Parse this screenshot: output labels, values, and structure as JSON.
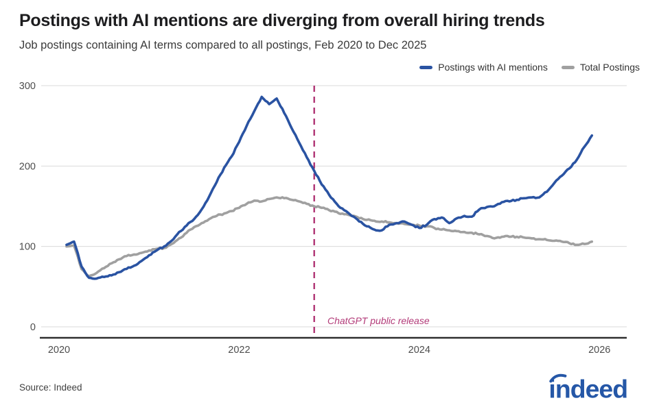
{
  "page": {
    "title": "Postings with AI mentions are diverging from overall hiring trends",
    "subtitle": "Job postings containing AI terms compared to all postings, Feb 2020 to Dec 2025",
    "source": "Source: Indeed",
    "logo_text": "indeed"
  },
  "colors": {
    "ai_line": "#2a53a2",
    "total_line": "#a0a0a0",
    "annotation": "#b23a78",
    "grid": "#d9d9d9",
    "axis": "#2e2e2e",
    "tick_text": "#4d4d4d",
    "brand_blue": "#2557a7"
  },
  "legend": [
    {
      "label": "Postings with AI mentions",
      "color": "#2a53a2"
    },
    {
      "label": "Total Postings",
      "color": "#a0a0a0"
    }
  ],
  "chart_data": {
    "type": "line",
    "title": "Postings with AI mentions are diverging from overall hiring trends",
    "subtitle": "Job postings containing AI terms compared to all postings, Feb 2020 to Dec 2025",
    "x": [
      "2020-02",
      "2020-03",
      "2020-04",
      "2020-05",
      "2020-06",
      "2020-07",
      "2020-08",
      "2020-09",
      "2020-10",
      "2020-11",
      "2020-12",
      "2021-01",
      "2021-02",
      "2021-03",
      "2021-04",
      "2021-05",
      "2021-06",
      "2021-07",
      "2021-08",
      "2021-09",
      "2021-10",
      "2021-11",
      "2021-12",
      "2022-01",
      "2022-02",
      "2022-03",
      "2022-04",
      "2022-05",
      "2022-06",
      "2022-07",
      "2022-08",
      "2022-09",
      "2022-10",
      "2022-11",
      "2022-12",
      "2023-01",
      "2023-02",
      "2023-03",
      "2023-04",
      "2023-05",
      "2023-06",
      "2023-07",
      "2023-08",
      "2023-09",
      "2023-10",
      "2023-11",
      "2023-12",
      "2024-01",
      "2024-02",
      "2024-03",
      "2024-04",
      "2024-05",
      "2024-06",
      "2024-07",
      "2024-08",
      "2024-09",
      "2024-10",
      "2024-11",
      "2024-12",
      "2025-01",
      "2025-02",
      "2025-03",
      "2025-04",
      "2025-05",
      "2025-06",
      "2025-07",
      "2025-08",
      "2025-09",
      "2025-10",
      "2025-11",
      "2025-12"
    ],
    "series": [
      {
        "name": "Postings with AI mentions",
        "color": "#2a53a2",
        "values": [
          102,
          106,
          75,
          61,
          60,
          62,
          64,
          68,
          72,
          76,
          82,
          89,
          95,
          100,
          107,
          118,
          126,
          134,
          146,
          162,
          180,
          198,
          212,
          230,
          250,
          268,
          286,
          277,
          284,
          266,
          247,
          229,
          211,
          194,
          177,
          164,
          153,
          145,
          138,
          131,
          125,
          121,
          120,
          127,
          129,
          131,
          127,
          123,
          127,
          134,
          136,
          129,
          135,
          138,
          137,
          146,
          149,
          150,
          155,
          156,
          158,
          160,
          161,
          161,
          168,
          179,
          188,
          197,
          208,
          224,
          238
        ]
      },
      {
        "name": "Total Postings",
        "color": "#a0a0a0",
        "values": [
          100,
          101,
          72,
          63,
          67,
          73,
          79,
          84,
          88,
          90,
          92,
          95,
          97,
          98,
          103,
          110,
          117,
          124,
          129,
          134,
          138,
          141,
          144,
          148,
          153,
          157,
          156,
          159,
          161,
          160,
          158,
          156,
          153,
          150,
          148,
          145,
          143,
          140,
          138,
          135,
          133,
          132,
          131,
          130,
          129,
          128,
          127,
          126,
          125,
          123,
          121,
          120,
          119,
          118,
          117,
          115,
          113,
          110,
          112,
          112,
          112,
          111,
          110,
          109,
          108,
          107,
          106,
          104,
          102,
          103,
          106
        ]
      }
    ],
    "y_ticks": [
      0,
      100,
      200,
      300
    ],
    "x_ticks": [
      "2020",
      "2022",
      "2024",
      "2026"
    ],
    "ylim": [
      0,
      300
    ],
    "grid": "horizontal",
    "legend_position": "top-right",
    "annotation": {
      "label": "ChatGPT public release",
      "x": "2022-11",
      "style": "dashed-vertical-line"
    }
  }
}
